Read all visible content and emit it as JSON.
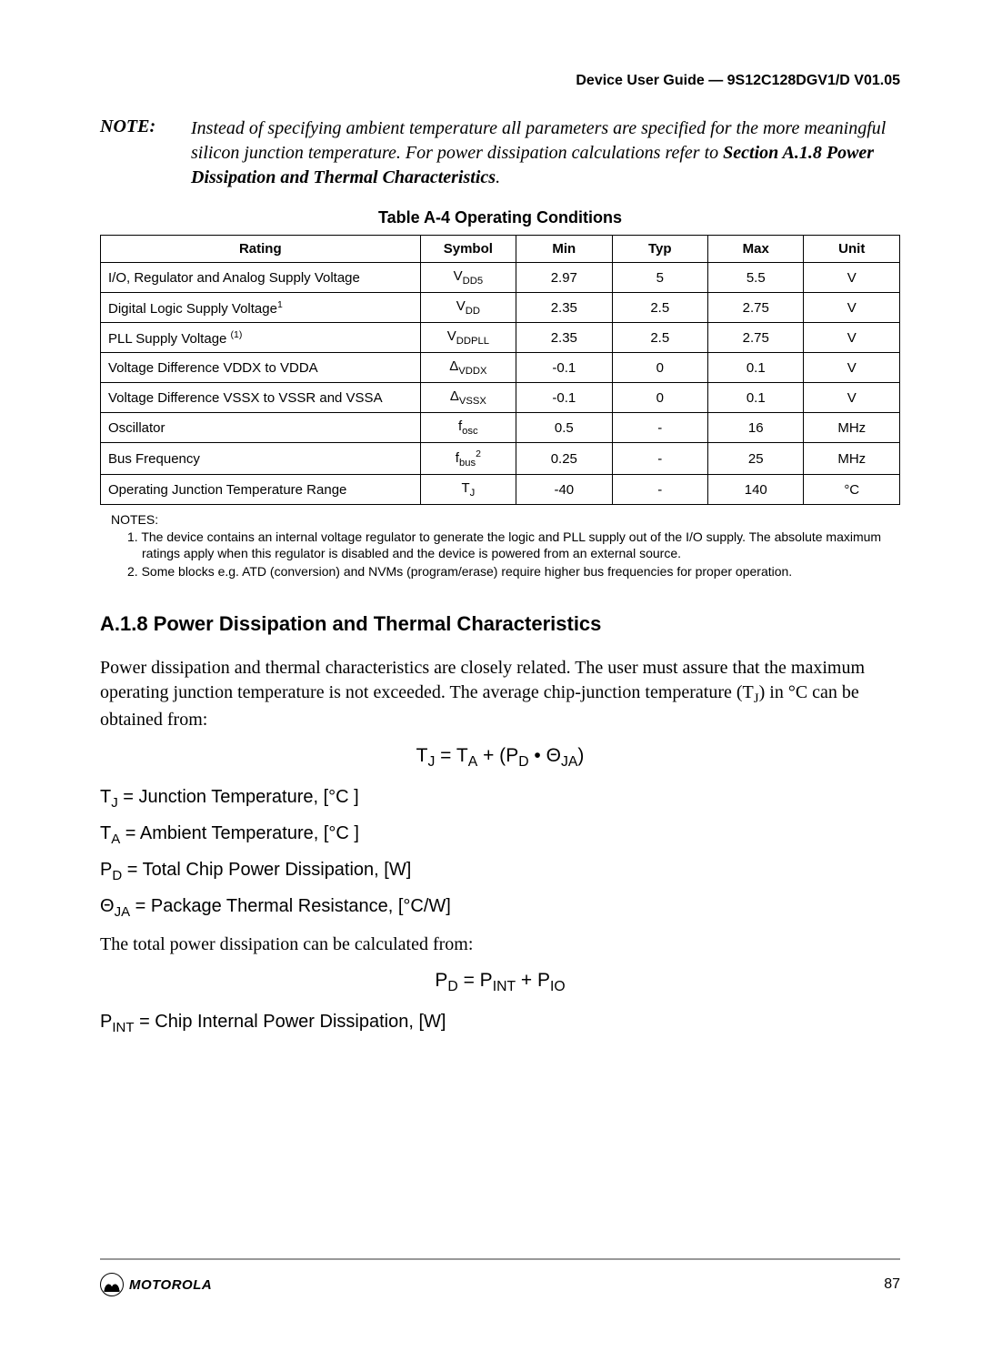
{
  "header": {
    "title": "Device User Guide — 9S12C128DGV1/D V01.05"
  },
  "note": {
    "label": "NOTE:",
    "text_pre": "Instead of specifying ambient temperature all parameters are specified for the more meaningful silicon junction temperature. For power dissipation calculations refer to ",
    "text_bold": "Section A.1.8 Power Dissipation and Thermal Characteristics",
    "text_post": "."
  },
  "table": {
    "caption": "Table A-4  Operating Conditions",
    "headers": {
      "rating": "Rating",
      "symbol": "Symbol",
      "min": "Min",
      "typ": "Typ",
      "max": "Max",
      "unit": "Unit"
    },
    "rows": [
      {
        "rating": "I/O, Regulator and Analog Supply Voltage",
        "sym_base": "V",
        "sym_sub": "DD5",
        "sym_sup": "",
        "min": "2.97",
        "typ": "5",
        "max": "5.5",
        "unit": "V"
      },
      {
        "rating": "Digital Logic Supply Voltage",
        "rating_sup": "1",
        "sym_base": "V",
        "sym_sub": "DD",
        "sym_sup": "",
        "min": "2.35",
        "typ": "2.5",
        "max": "2.75",
        "unit": "V"
      },
      {
        "rating": "PLL Supply Voltage ",
        "rating_sup": "(1)",
        "sym_base": "V",
        "sym_sub": "DDPLL",
        "sym_sup": "",
        "min": "2.35",
        "typ": "2.5",
        "max": "2.75",
        "unit": "V"
      },
      {
        "rating": "Voltage Difference VDDX to VDDA",
        "sym_base": "Δ",
        "sym_sub": "VDDX",
        "sym_sup": "",
        "min": "-0.1",
        "typ": "0",
        "max": "0.1",
        "unit": "V"
      },
      {
        "rating": "Voltage Difference VSSX to VSSR and VSSA",
        "sym_base": "Δ",
        "sym_sub": "VSSX",
        "sym_sup": "",
        "min": "-0.1",
        "typ": "0",
        "max": "0.1",
        "unit": "V"
      },
      {
        "rating": "Oscillator",
        "sym_base": "f",
        "sym_sub": "osc",
        "sym_sup": "",
        "min": "0.5",
        "typ": "-",
        "max": "16",
        "unit": "MHz"
      },
      {
        "rating": "Bus Frequency",
        "sym_base": "f",
        "sym_sub": "bus",
        "sym_sup": "2",
        "min": "0.25",
        "typ": "-",
        "max": "25",
        "unit": "MHz"
      },
      {
        "rating": "Operating Junction Temperature Range",
        "sym_base": "T",
        "sym_sub": "J",
        "sym_sup": "",
        "min": "-40",
        "typ": "-",
        "max": "140",
        "unit": "°C"
      }
    ],
    "notes_label": "NOTES:",
    "footnotes": [
      "1. The device contains an internal voltage regulator to generate the logic and PLL supply out of the I/O supply. The absolute maximum ratings apply when this regulator is disabled and the device is powered from an external source.",
      "2. Some blocks e.g. ATD (conversion) and NVMs (program/erase) require higher bus frequencies for proper operation."
    ]
  },
  "section": {
    "heading": "A.1.8  Power Dissipation and Thermal Characteristics",
    "para1_pre": "Power dissipation and thermal characteristics are closely related. The user must assure that the maximum operating junction temperature is not exceeded. The average chip-junction temperature (T",
    "para1_sub": "J",
    "para1_post": ") in °C can be obtained from:",
    "eq1": {
      "lhs_base": "T",
      "lhs_sub": "J",
      "eq": " = ",
      "t1_base": "T",
      "t1_sub": "A",
      "plus": " + (",
      "t2_base": "P",
      "t2_sub": "D",
      "dot": " • ",
      "t3_base": "Θ",
      "t3_sub": "JA",
      "close": ")"
    },
    "defs1": [
      {
        "sym_base": "T",
        "sym_sub": "J",
        "text": " =  Junction Temperature, [°C ]"
      },
      {
        "sym_base": "T",
        "sym_sub": "A",
        "text": " =  Ambient Temperature, [°C ]"
      },
      {
        "sym_base": "P",
        "sym_sub": "D",
        "text": " =  Total Chip Power Dissipation, [W]"
      },
      {
        "sym_base": "Θ",
        "sym_sub": "JA",
        "text": " =  Package Thermal Resistance, [°C/W]"
      }
    ],
    "para2": "The total power dissipation can be calculated from:",
    "eq2": {
      "lhs_base": "P",
      "lhs_sub": "D",
      "eq": " = ",
      "t1_base": "P",
      "t1_sub": "INT",
      "plus": " + ",
      "t2_base": "P",
      "t2_sub": "IO"
    },
    "defs2": [
      {
        "sym_base": "P",
        "sym_sub": "INT",
        "text": " =  Chip Internal Power Dissipation, [W]"
      }
    ]
  },
  "footer": {
    "logo_text": "MOTOROLA",
    "page": "87"
  }
}
